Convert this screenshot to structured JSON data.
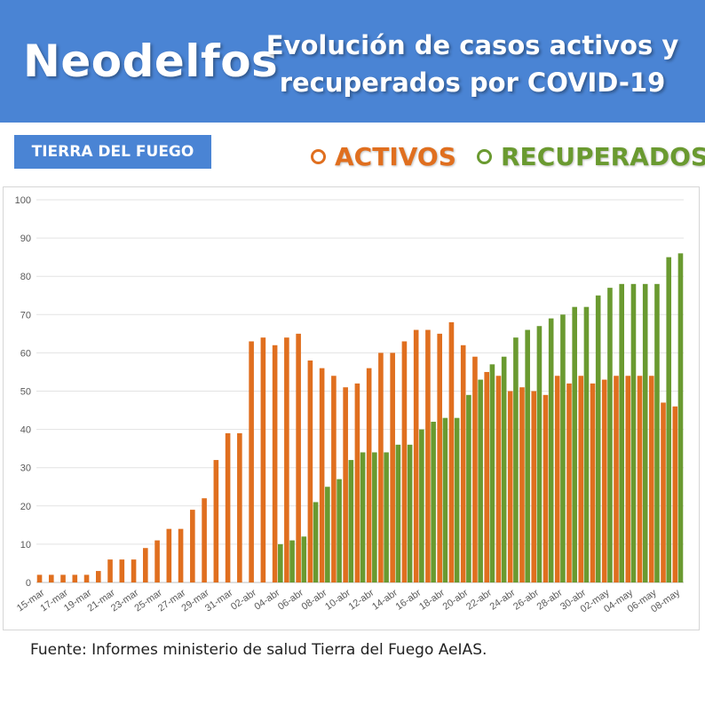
{
  "header": {
    "brand": "Neodelfos",
    "title_line1": "Evolución de casos activos y",
    "title_line2": "recuperados por COVID-19"
  },
  "region": "TIERRA DEL FUEGO",
  "legend": {
    "activos": "ACTIVOS",
    "recuperados": "RECUPERADOS"
  },
  "colors": {
    "header_bg": "#4a84d4",
    "activos": "#e06f1f",
    "recuperados": "#6a9a30"
  },
  "source": "Fuente: Informes ministerio de salud Tierra del Fuego AeIAS.",
  "chart_data": {
    "type": "bar",
    "ylim": [
      0,
      100
    ],
    "yticks": [
      0,
      10,
      20,
      30,
      40,
      50,
      60,
      70,
      80,
      90,
      100
    ],
    "grid": true,
    "legend_position": "top-right",
    "categories": [
      "15-mar",
      "16-mar",
      "17-mar",
      "18-mar",
      "19-mar",
      "20-mar",
      "21-mar",
      "22-mar",
      "23-mar",
      "24-mar",
      "25-mar",
      "26-mar",
      "27-mar",
      "28-mar",
      "29-mar",
      "30-mar",
      "31-mar",
      "01-abr",
      "02-abr",
      "03-abr",
      "04-abr",
      "05-abr",
      "06-abr",
      "07-abr",
      "08-abr",
      "09-abr",
      "10-abr",
      "11-abr",
      "12-abr",
      "13-abr",
      "14-abr",
      "15-abr",
      "16-abr",
      "17-abr",
      "18-abr",
      "19-abr",
      "20-abr",
      "21-abr",
      "22-abr",
      "23-abr",
      "24-abr",
      "25-abr",
      "26-abr",
      "27-abr",
      "28-abr",
      "29-abr",
      "30-abr",
      "01-may",
      "02-may",
      "03-may",
      "04-may",
      "05-may",
      "06-may",
      "07-may",
      "08-may"
    ],
    "series": [
      {
        "name": "ACTIVOS",
        "values": [
          2,
          2,
          2,
          2,
          2,
          3,
          6,
          6,
          6,
          9,
          11,
          14,
          14,
          19,
          22,
          32,
          39,
          39,
          63,
          64,
          62,
          64,
          65,
          58,
          56,
          54,
          51,
          52,
          56,
          60,
          60,
          63,
          66,
          66,
          65,
          68,
          62,
          59,
          55,
          54,
          50,
          51,
          50,
          49,
          54,
          52,
          54,
          52,
          53,
          54,
          54,
          54,
          54,
          47,
          46
        ]
      },
      {
        "name": "RECUPERADOS",
        "values": [
          0,
          0,
          0,
          0,
          0,
          0,
          0,
          0,
          0,
          0,
          0,
          0,
          0,
          0,
          0,
          0,
          0,
          0,
          0,
          0,
          10,
          11,
          12,
          21,
          25,
          27,
          32,
          34,
          34,
          34,
          36,
          36,
          40,
          42,
          43,
          43,
          49,
          53,
          57,
          59,
          64,
          66,
          67,
          69,
          70,
          72,
          72,
          75,
          77,
          78,
          78,
          78,
          78,
          85,
          86
        ]
      }
    ]
  }
}
